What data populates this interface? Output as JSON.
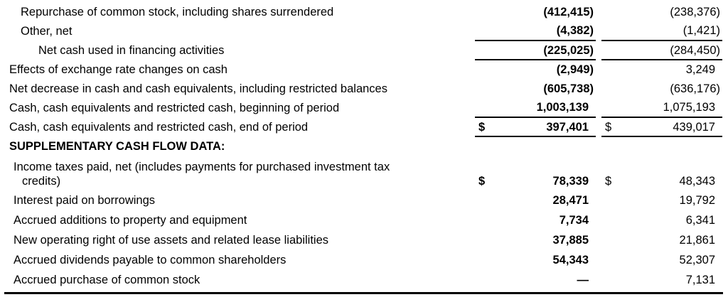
{
  "colors": {
    "text": "#000000",
    "rule_lines": "#000000",
    "background": "#ffffff"
  },
  "table": {
    "rows": [
      {
        "label": "Repurchase of common stock, including shares surrendered",
        "v1": "(412,415)",
        "v2": "(238,376)"
      },
      {
        "label": "Other, net",
        "v1": "(4,382)",
        "v2": "(1,421)"
      },
      {
        "label": "Net cash used in financing activities",
        "v1": "(225,025)",
        "v2": "(284,450)"
      },
      {
        "label": "Effects of exchange rate changes on cash",
        "v1": "(2,949)",
        "v2": "3,249"
      },
      {
        "label": "Net decrease in cash and cash equivalents, including restricted balances",
        "v1": "(605,738)",
        "v2": "(636,176)"
      },
      {
        "label": "Cash, cash equivalents and restricted cash, beginning of period",
        "v1": "1,003,139",
        "v2": "1,075,193"
      },
      {
        "label": "Cash, cash equivalents and restricted cash, end of period",
        "d1": "$",
        "v1": "397,401",
        "d2": "$",
        "v2": "439,017"
      },
      {
        "label": "SUPPLEMENTARY CASH FLOW DATA:"
      },
      {
        "label": "Income taxes paid, net (includes payments for purchased investment tax",
        "label2": "credits)",
        "d1": "$",
        "v1": "78,339",
        "d2": "$",
        "v2": "48,343"
      },
      {
        "label": "Interest paid on borrowings",
        "v1": "28,471",
        "v2": "19,792"
      },
      {
        "label": "Accrued additions to property and equipment",
        "v1": "7,734",
        "v2": "6,341"
      },
      {
        "label": "New operating right of use assets and related lease liabilities",
        "v1": "37,885",
        "v2": "21,861"
      },
      {
        "label": "Accrued dividends payable to common shareholders",
        "v1": "54,343",
        "v2": "52,307"
      },
      {
        "label": "Accrued purchase of common stock",
        "v1": "—",
        "v2": "7,131"
      }
    ]
  }
}
